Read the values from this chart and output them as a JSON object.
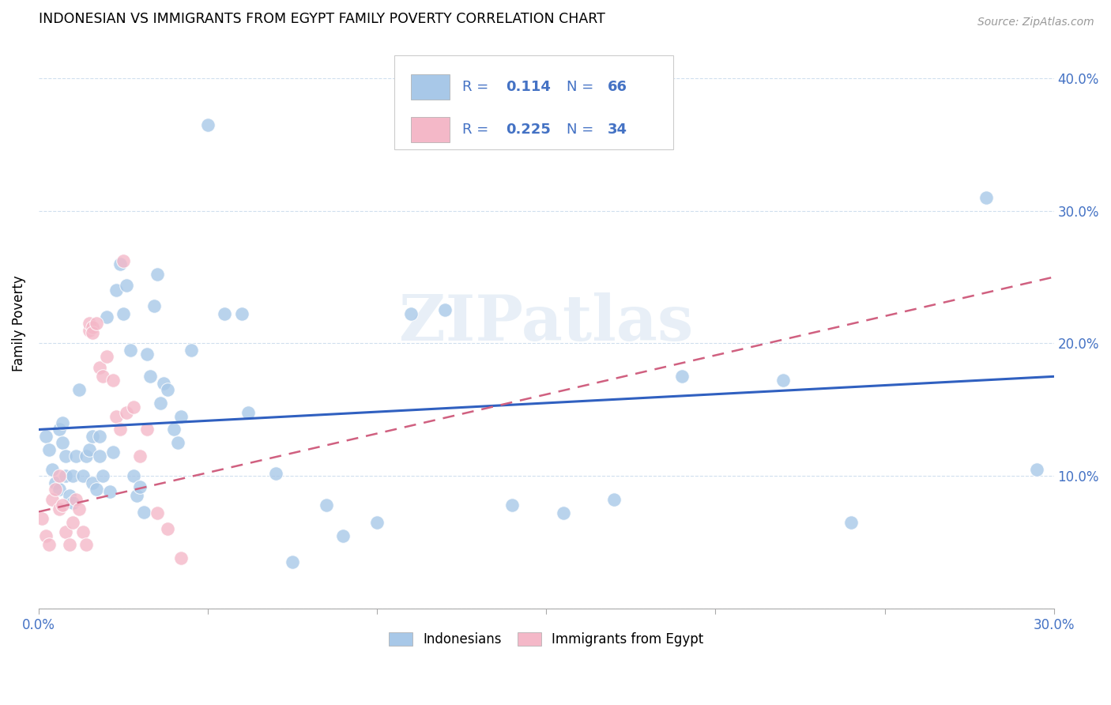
{
  "title": "INDONESIAN VS IMMIGRANTS FROM EGYPT FAMILY POVERTY CORRELATION CHART",
  "source": "Source: ZipAtlas.com",
  "ylabel": "Family Poverty",
  "y_ticks": [
    0.0,
    0.1,
    0.2,
    0.3,
    0.4
  ],
  "y_tick_labels": [
    "",
    "10.0%",
    "20.0%",
    "30.0%",
    "40.0%"
  ],
  "x_range": [
    0.0,
    0.3
  ],
  "y_range": [
    0.0,
    0.43
  ],
  "indonesian_color": "#a8c8e8",
  "egypt_color": "#f4b8c8",
  "indonesian_line_color": "#3060c0",
  "egypt_line_color": "#d06080",
  "watermark": "ZIPatlas",
  "legend_text_color": "#4472c4",
  "indo_x": [
    0.002,
    0.003,
    0.004,
    0.005,
    0.006,
    0.006,
    0.007,
    0.007,
    0.008,
    0.008,
    0.009,
    0.01,
    0.01,
    0.011,
    0.012,
    0.013,
    0.014,
    0.015,
    0.016,
    0.016,
    0.017,
    0.018,
    0.018,
    0.019,
    0.02,
    0.021,
    0.022,
    0.023,
    0.024,
    0.025,
    0.026,
    0.027,
    0.028,
    0.029,
    0.03,
    0.031,
    0.032,
    0.033,
    0.034,
    0.035,
    0.036,
    0.037,
    0.038,
    0.04,
    0.041,
    0.042,
    0.045,
    0.05,
    0.055,
    0.06,
    0.062,
    0.07,
    0.075,
    0.085,
    0.09,
    0.1,
    0.11,
    0.12,
    0.14,
    0.155,
    0.17,
    0.19,
    0.22,
    0.24,
    0.28,
    0.295
  ],
  "indo_y": [
    0.13,
    0.12,
    0.105,
    0.095,
    0.09,
    0.135,
    0.125,
    0.14,
    0.1,
    0.115,
    0.085,
    0.08,
    0.1,
    0.115,
    0.165,
    0.1,
    0.115,
    0.12,
    0.095,
    0.13,
    0.09,
    0.115,
    0.13,
    0.1,
    0.22,
    0.088,
    0.118,
    0.24,
    0.26,
    0.222,
    0.244,
    0.195,
    0.1,
    0.085,
    0.092,
    0.073,
    0.192,
    0.175,
    0.228,
    0.252,
    0.155,
    0.17,
    0.165,
    0.135,
    0.125,
    0.145,
    0.195,
    0.365,
    0.222,
    0.222,
    0.148,
    0.102,
    0.035,
    0.078,
    0.055,
    0.065,
    0.222,
    0.225,
    0.078,
    0.072,
    0.082,
    0.175,
    0.172,
    0.065,
    0.31,
    0.105
  ],
  "egypt_x": [
    0.001,
    0.002,
    0.003,
    0.004,
    0.005,
    0.006,
    0.006,
    0.007,
    0.008,
    0.009,
    0.01,
    0.011,
    0.012,
    0.013,
    0.014,
    0.015,
    0.015,
    0.016,
    0.016,
    0.017,
    0.018,
    0.019,
    0.02,
    0.022,
    0.023,
    0.024,
    0.025,
    0.026,
    0.028,
    0.03,
    0.032,
    0.035,
    0.038,
    0.042
  ],
  "egypt_y": [
    0.068,
    0.055,
    0.048,
    0.082,
    0.09,
    0.1,
    0.075,
    0.078,
    0.058,
    0.048,
    0.065,
    0.082,
    0.075,
    0.058,
    0.048,
    0.21,
    0.215,
    0.212,
    0.208,
    0.215,
    0.182,
    0.175,
    0.19,
    0.172,
    0.145,
    0.135,
    0.262,
    0.148,
    0.152,
    0.115,
    0.135,
    0.072,
    0.06,
    0.038
  ]
}
